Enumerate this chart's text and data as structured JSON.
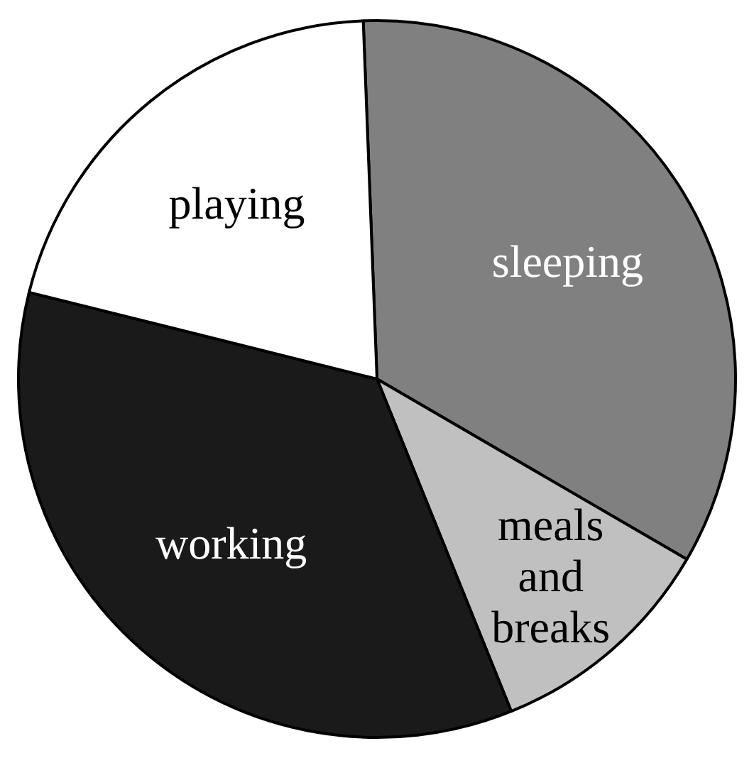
{
  "chart_data": {
    "type": "pie",
    "categories": [
      "sleeping",
      "meals and breaks",
      "working",
      "playing"
    ],
    "values": [
      34,
      10.5,
      35,
      20.5
    ],
    "colors": [
      "#808080",
      "#c0c0c0",
      "#1a1a1a",
      "#ffffff"
    ],
    "legend": false
  }
}
